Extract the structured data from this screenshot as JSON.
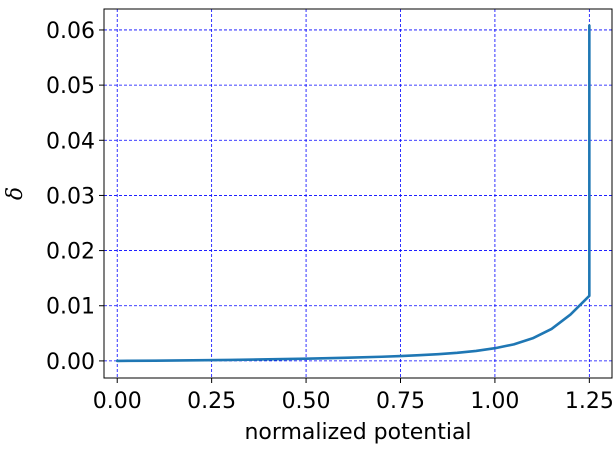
{
  "chart_data": {
    "type": "line",
    "title": "",
    "xlabel": "normalized potential",
    "ylabel": "δ",
    "xlim": [
      -0.035,
      1.31
    ],
    "ylim": [
      -0.0031,
      0.0638
    ],
    "xticks": [
      0.0,
      0.25,
      0.5,
      0.75,
      1.0,
      1.25
    ],
    "xtick_labels": [
      "0.00",
      "0.25",
      "0.50",
      "0.75",
      "1.00",
      "1.25"
    ],
    "yticks": [
      0.0,
      0.01,
      0.02,
      0.03,
      0.04,
      0.05,
      0.06
    ],
    "ytick_labels": [
      "0.00",
      "0.01",
      "0.02",
      "0.03",
      "0.04",
      "0.05",
      "0.06"
    ],
    "grid": true,
    "grid_color": "#0000ff",
    "line_color": "#1f77b4",
    "series": [
      {
        "x": [
          0.0,
          0.1,
          0.2,
          0.3,
          0.4,
          0.5,
          0.6,
          0.7,
          0.75,
          0.8,
          0.85,
          0.9,
          0.95,
          1.0,
          1.05,
          1.1,
          1.15,
          1.2,
          1.225,
          1.25,
          1.25
        ],
        "values": [
          0.0,
          4e-05,
          0.0001,
          0.00018,
          0.00028,
          0.0004,
          0.00056,
          0.00075,
          0.00088,
          0.00103,
          0.00122,
          0.00147,
          0.0018,
          0.0023,
          0.003,
          0.0041,
          0.0058,
          0.0084,
          0.0101,
          0.0118,
          0.0608
        ]
      }
    ]
  }
}
